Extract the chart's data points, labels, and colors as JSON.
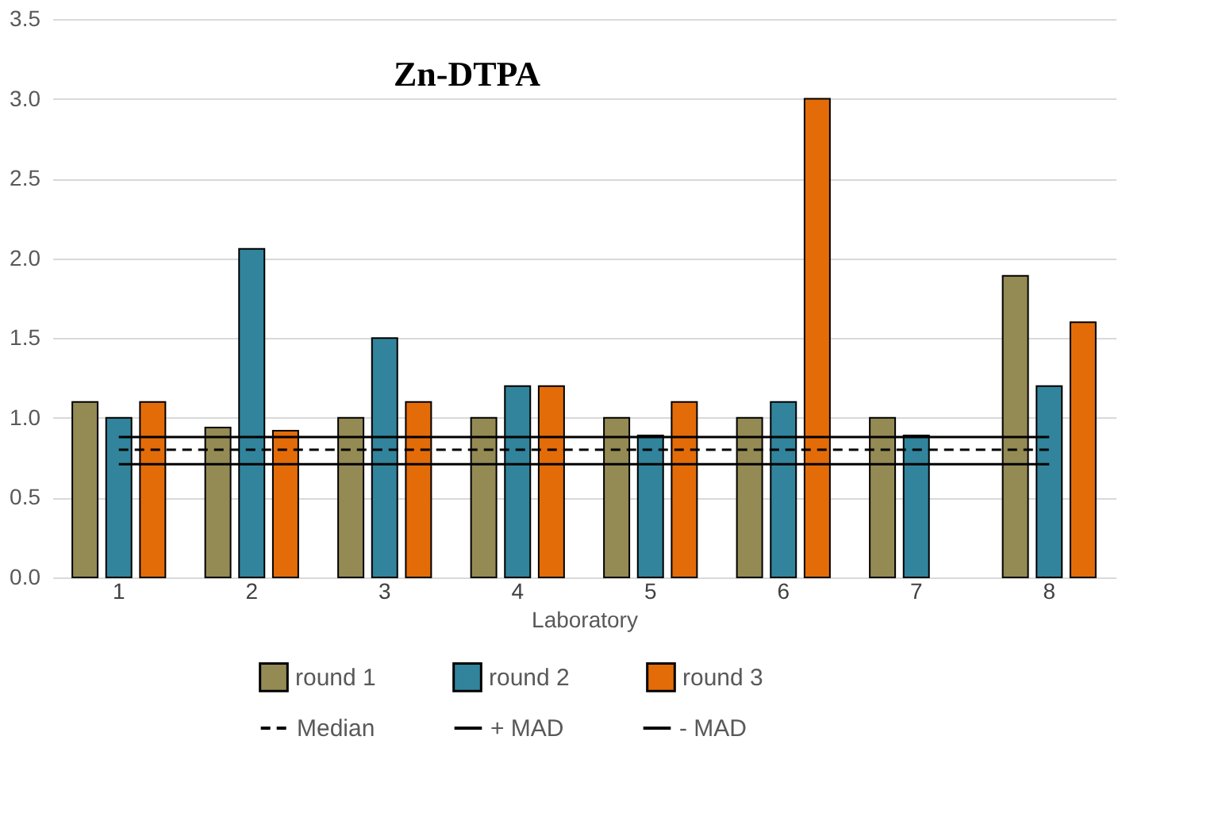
{
  "chart_data": {
    "type": "bar",
    "title": "Zn-DTPA",
    "xlabel": "Laboratory",
    "categories": [
      "1",
      "2",
      "3",
      "4",
      "5",
      "6",
      "7",
      "8"
    ],
    "series": [
      {
        "name": "round 1",
        "color": "#948a54",
        "values": [
          1.1,
          0.94,
          1.0,
          1.0,
          1.0,
          1.0,
          1.0,
          1.89
        ]
      },
      {
        "name": "round 2",
        "color": "#31849b",
        "values": [
          1.0,
          2.06,
          1.5,
          1.2,
          0.89,
          1.1,
          0.89,
          1.2
        ]
      },
      {
        "name": "round 3",
        "color": "#e36c09",
        "values": [
          1.1,
          0.92,
          1.1,
          1.2,
          1.1,
          3.0,
          null,
          1.6
        ]
      },
      {
        "name": "Median",
        "type": "line",
        "color": "#000000",
        "line_style": "dashed",
        "values": [
          0.8,
          0.8,
          0.8,
          0.8,
          0.8,
          0.8,
          0.8,
          0.8
        ]
      },
      {
        "name": "+ MAD",
        "type": "line",
        "color": "#000000",
        "line_style": "solid",
        "values": [
          0.88,
          0.88,
          0.88,
          0.88,
          0.88,
          0.88,
          0.88,
          0.88
        ]
      },
      {
        "name": "- MAD",
        "type": "line",
        "color": "#000000",
        "line_style": "solid",
        "values": [
          0.71,
          0.71,
          0.71,
          0.71,
          0.71,
          0.71,
          0.71,
          0.71
        ]
      }
    ],
    "ylim": [
      0,
      3.5
    ],
    "yticks": [
      {
        "value": 0,
        "label": "0.0"
      },
      0.5,
      {
        "value": 1,
        "label": "1.0"
      },
      1.5,
      {
        "value": 2,
        "label": "2.0"
      },
      2.5,
      {
        "value": 3,
        "label": "3.0"
      },
      3.5
    ],
    "grid": "y",
    "legend": "bottom"
  }
}
